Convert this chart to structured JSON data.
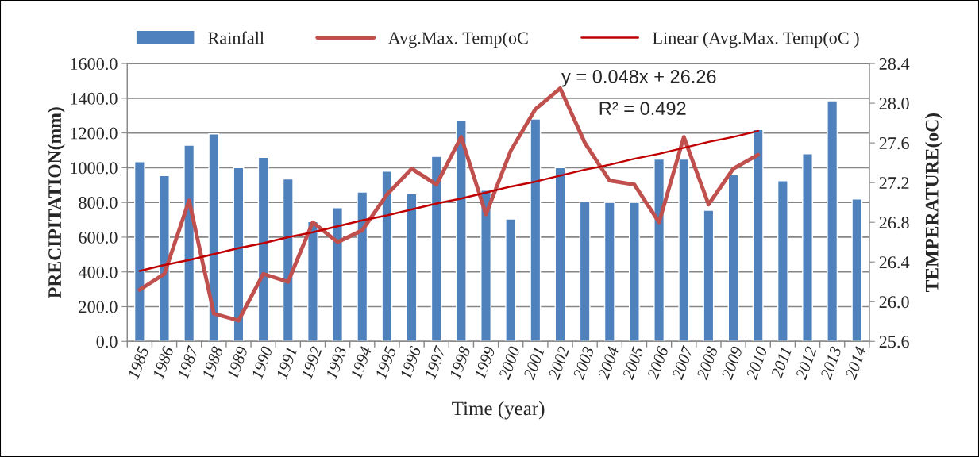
{
  "chart_data": {
    "type": "bar",
    "categories": [
      "1985",
      "1986",
      "1987",
      "1988",
      "1989",
      "1990",
      "1991",
      "1992",
      "1993",
      "1994",
      "1995",
      "1996",
      "1997",
      "1998",
      "1999",
      "2000",
      "2001",
      "2002",
      "2003",
      "2004",
      "2005",
      "2006",
      "2007",
      "2008",
      "2009",
      "2010",
      "2011",
      "2012",
      "2013",
      "2014"
    ],
    "series": [
      {
        "name": "Rainfall",
        "color": "#4f81bd",
        "values": [
          1035,
          955,
          1130,
          1195,
          1000,
          1060,
          935,
          690,
          770,
          860,
          980,
          850,
          1065,
          1275,
          870,
          705,
          1280,
          1000,
          805,
          800,
          800,
          1050,
          1050,
          755,
          960,
          1220,
          925,
          1080,
          1385,
          820
        ]
      },
      {
        "name": "Avg.Max. Temp(oC",
        "type": "line",
        "axis": "y2",
        "color": "#c0504d",
        "values": [
          26.12,
          26.28,
          27.02,
          25.88,
          25.81,
          26.28,
          26.2,
          26.8,
          26.6,
          26.72,
          27.08,
          27.34,
          27.18,
          27.66,
          26.88,
          27.52,
          27.94,
          28.15,
          27.6,
          27.22,
          27.18,
          26.8,
          27.66,
          26.98,
          27.34,
          27.48,
          null,
          null,
          null,
          null
        ]
      },
      {
        "name": "Linear (Avg.Max. Temp(oC )",
        "type": "line",
        "axis": "y2",
        "color": "#c00000",
        "values": [
          26.31,
          26.37,
          26.42,
          26.48,
          26.54,
          26.59,
          26.65,
          26.7,
          26.76,
          26.82,
          26.87,
          26.93,
          26.99,
          27.04,
          27.1,
          27.16,
          27.21,
          27.27,
          27.33,
          27.38,
          27.44,
          27.49,
          27.55,
          27.61,
          27.66,
          27.72,
          null,
          null,
          null,
          null
        ]
      }
    ],
    "xlabel": "Time (year)",
    "ylabel": "PRECIPITATION(mm)",
    "y2label": "TEMPERATURE(oC)",
    "ylim": [
      0,
      1600
    ],
    "yticks": [
      {
        "value": 0,
        "label": "0.0"
      },
      {
        "value": 200,
        "label": "200.0"
      },
      {
        "value": 400,
        "label": "400.0"
      },
      {
        "value": 600,
        "label": "600.0"
      },
      {
        "value": 800,
        "label": "800.0"
      },
      {
        "value": 1000,
        "label": "1000.0"
      },
      {
        "value": 1200,
        "label": "1200.0"
      },
      {
        "value": 1400,
        "label": "1400.0"
      },
      {
        "value": 1600,
        "label": "1600.0"
      }
    ],
    "y2lim": [
      25.6,
      28.4
    ],
    "y2ticks": [
      25.6,
      {
        "value": 26.0,
        "label": "26.0"
      },
      26.4,
      26.8,
      27.2,
      27.6,
      {
        "value": 28.0,
        "label": "28.0"
      },
      28.4
    ],
    "annotations": [
      "y = 0.048x + 26.26",
      "R² = 0.492"
    ],
    "grid": "y",
    "legend": "top"
  }
}
